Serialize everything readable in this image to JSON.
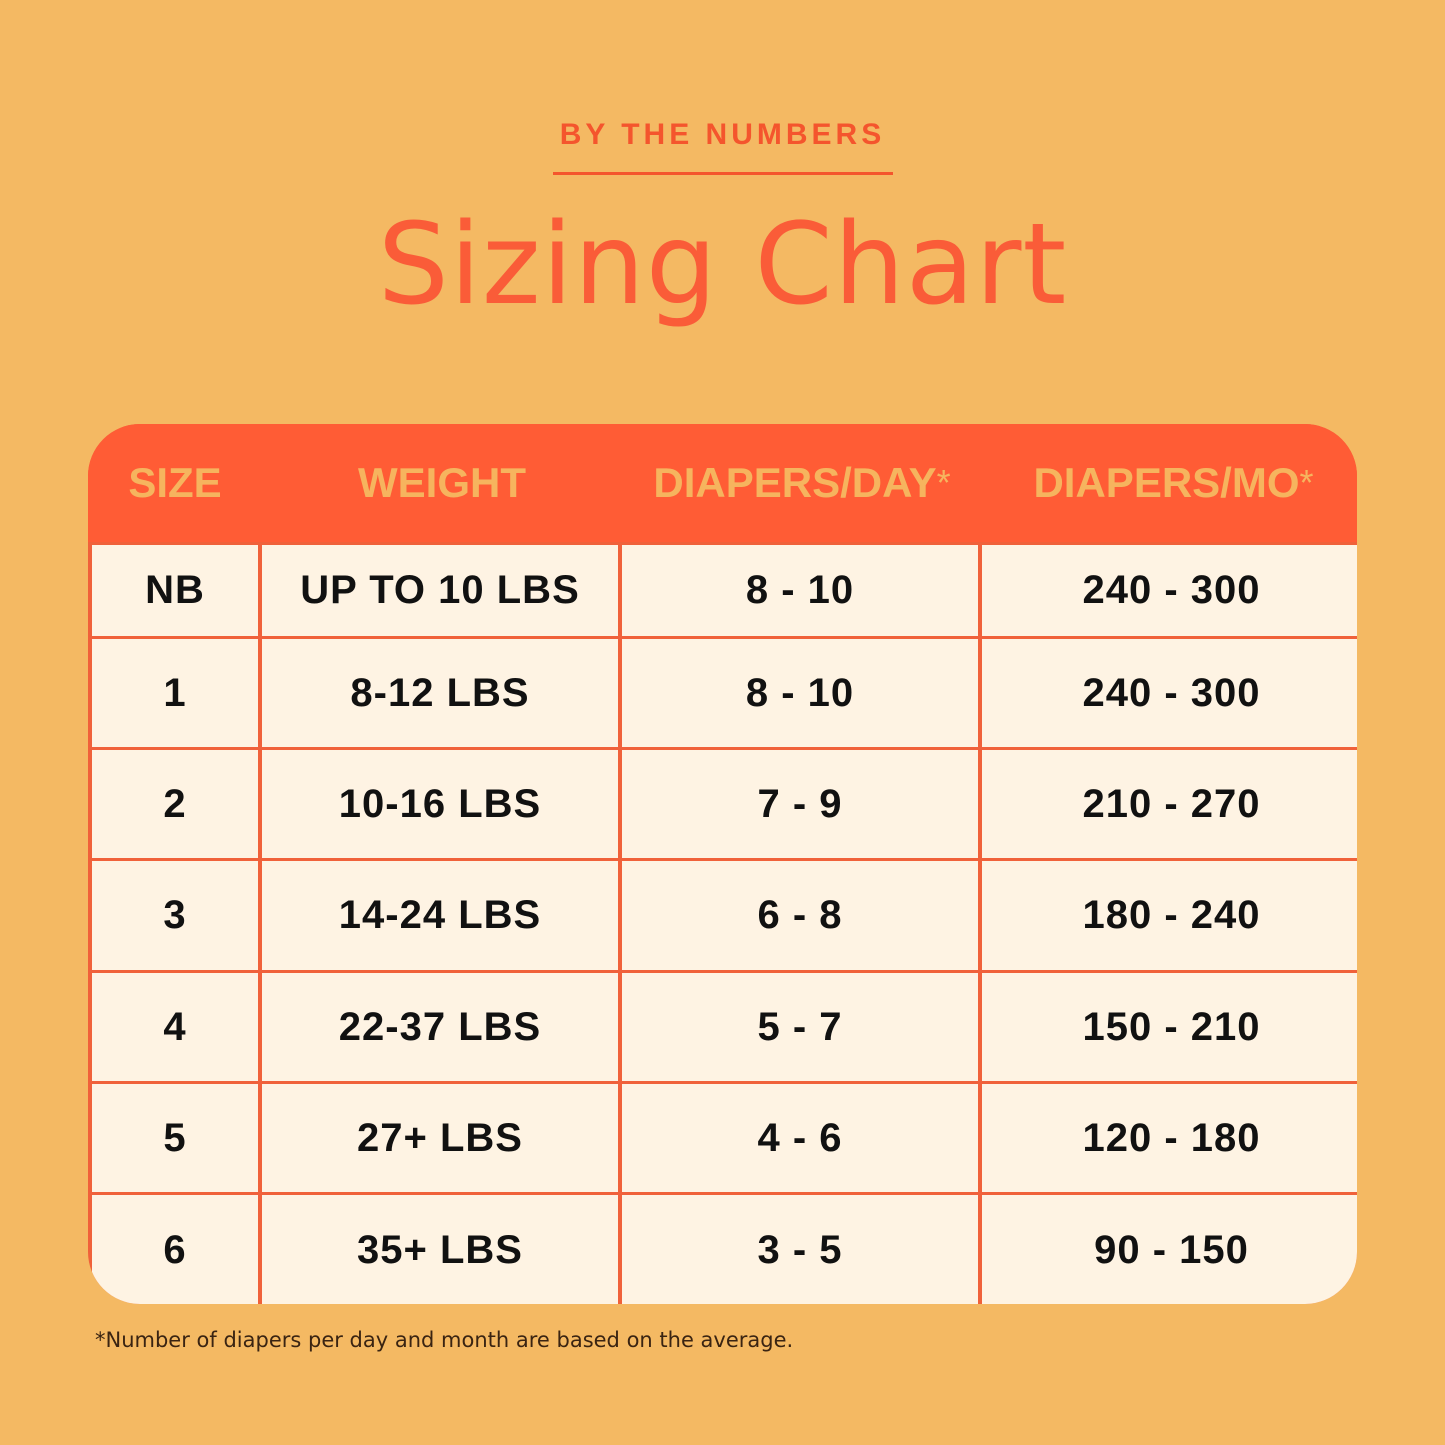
{
  "eyebrow": "BY THE NUMBERS",
  "title": "Sizing Chart",
  "colors": {
    "background": "#F4B963",
    "accent": "#FF5C35",
    "cell": "#FEF3E3",
    "header_text": "#F6B45E"
  },
  "table": {
    "headers": [
      {
        "label": "SIZE",
        "mark": ""
      },
      {
        "label": "WEIGHT",
        "mark": ""
      },
      {
        "label": "DIAPERS/DAY",
        "mark": "*"
      },
      {
        "label": "DIAPERS/MO",
        "mark": "*"
      }
    ],
    "rows": [
      [
        "NB",
        "UP TO 10 LBS",
        "8 - 10",
        "240 - 300"
      ],
      [
        "1",
        "8-12 LBS",
        "8 - 10",
        "240 - 300"
      ],
      [
        "2",
        "10-16 LBS",
        "7 - 9",
        "210 - 270"
      ],
      [
        "3",
        "14-24 LBS",
        "6 - 8",
        "180 - 240"
      ],
      [
        "4",
        "22-37 LBS",
        "5 - 7",
        "150 - 210"
      ],
      [
        "5",
        "27+ LBS",
        "4 - 6",
        "120 - 180"
      ],
      [
        "6",
        "35+ LBS",
        "3 - 5",
        "90 - 150"
      ]
    ]
  },
  "footnote": "*Number of diapers per day and month are based on the average."
}
